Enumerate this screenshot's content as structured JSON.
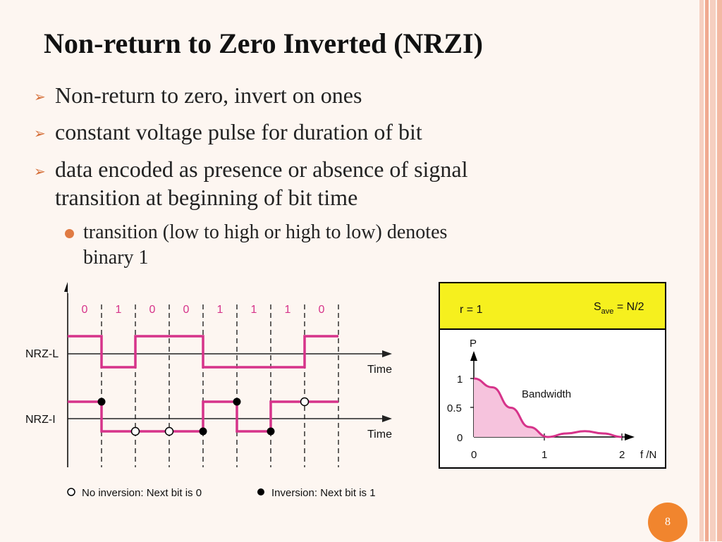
{
  "slide": {
    "title": "Non-return to Zero Inverted (NRZI)",
    "bullets": [
      "Non-return to zero, invert on ones",
      "constant voltage pulse for duration of bit",
      "data encoded as presence or absence of signal",
      "transition at beginning of bit time"
    ],
    "sub_bullet_line1": "transition (low to high or high to low) denotes",
    "sub_bullet_line2": "binary 1",
    "page_number": "8"
  },
  "colors": {
    "accent_orange": "#f1852e",
    "signal_magenta": "#d6338a",
    "header_yellow": "#f6f01e",
    "fill_pink": "#f6c3dd"
  },
  "waveform": {
    "bits": [
      "0",
      "1",
      "0",
      "0",
      "1",
      "1",
      "1",
      "0"
    ],
    "row1_label": "NRZ-L",
    "row2_label": "NRZ-I",
    "time_label": "Time",
    "legend_no_inversion": "No inversion: Next bit is 0",
    "legend_inversion": "Inversion: Next bit is 1"
  },
  "bandwidth_panel": {
    "r_label": "r = 1",
    "s_label": "S",
    "s_sub": "ave",
    "s_value": " = N/2",
    "ylabel": "P",
    "xlabel": "f /N",
    "curve_label": "Bandwidth",
    "y_ticks": [
      "1",
      "0.5",
      "0"
    ],
    "x_ticks": [
      "0",
      "1",
      "2"
    ]
  },
  "chart_data": {
    "type": "area",
    "title": "",
    "xlabel": "f /N",
    "ylabel": "P",
    "x": [
      0,
      0.25,
      0.5,
      0.75,
      1.0,
      1.25,
      1.5,
      1.75,
      2.0
    ],
    "values": [
      1.0,
      0.85,
      0.5,
      0.17,
      0.0,
      0.06,
      0.1,
      0.06,
      0.0
    ],
    "xlim": [
      0,
      2
    ],
    "ylim": [
      0,
      1
    ],
    "annotation": "Bandwidth"
  }
}
